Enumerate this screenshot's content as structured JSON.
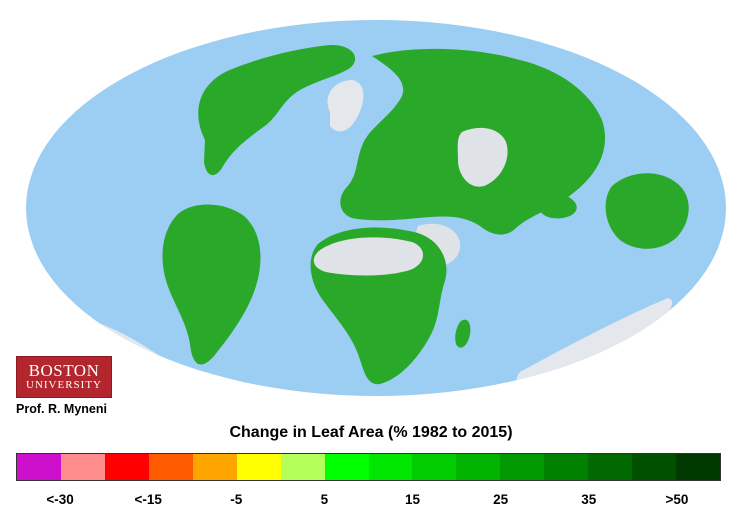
{
  "map": {
    "ocean_color": "#9ccdf2",
    "land_base_color": "#2aa82a",
    "ice_color": "#e4e8ec",
    "desert_color": "#dfe2e6"
  },
  "branding": {
    "logo_line1": "BOSTON",
    "logo_line2": "UNIVERSITY",
    "credit": "Prof. R. Myneni"
  },
  "legend": {
    "title": "Change in Leaf Area (% 1982 to 2015)",
    "swatches": [
      {
        "color": "#cc10cc"
      },
      {
        "color": "#ff8c8c"
      },
      {
        "color": "#ff0000"
      },
      {
        "color": "#ff5a00"
      },
      {
        "color": "#ffa500"
      },
      {
        "color": "#ffff00"
      },
      {
        "color": "#b4ff5a"
      },
      {
        "color": "#00ff00"
      },
      {
        "color": "#00e600"
      },
      {
        "color": "#00cc00"
      },
      {
        "color": "#00b400"
      },
      {
        "color": "#009a00"
      },
      {
        "color": "#008200"
      },
      {
        "color": "#006a00"
      },
      {
        "color": "#005000"
      },
      {
        "color": "#003a00"
      }
    ],
    "labels": [
      "<-30",
      "<-15",
      "-5",
      "5",
      "15",
      "25",
      "35",
      ">50"
    ]
  }
}
